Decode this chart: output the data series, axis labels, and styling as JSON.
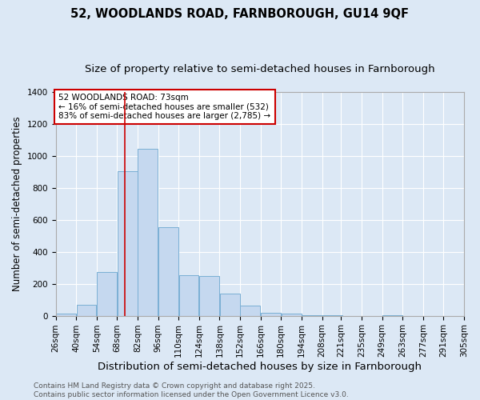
{
  "title1": "52, WOODLANDS ROAD, FARNBOROUGH, GU14 9QF",
  "title2": "Size of property relative to semi-detached houses in Farnborough",
  "xlabel": "Distribution of semi-detached houses by size in Farnborough",
  "ylabel": "Number of semi-detached properties",
  "bins": [
    "26sqm",
    "40sqm",
    "54sqm",
    "68sqm",
    "82sqm",
    "96sqm",
    "110sqm",
    "124sqm",
    "138sqm",
    "152sqm",
    "166sqm",
    "180sqm",
    "194sqm",
    "208sqm",
    "221sqm",
    "235sqm",
    "249sqm",
    "263sqm",
    "277sqm",
    "291sqm",
    "305sqm"
  ],
  "bin_edges": [
    26,
    40,
    54,
    68,
    82,
    96,
    110,
    124,
    138,
    152,
    166,
    180,
    194,
    208,
    221,
    235,
    249,
    263,
    277,
    291,
    305
  ],
  "values": [
    15,
    70,
    275,
    905,
    1045,
    555,
    255,
    250,
    140,
    65,
    20,
    15,
    5,
    5,
    0,
    0,
    5,
    0,
    0,
    0
  ],
  "bar_color": "#c5d8ef",
  "bar_edge_color": "#7aafd4",
  "property_line_x": 73,
  "annotation_text": "52 WOODLANDS ROAD: 73sqm\n← 16% of semi-detached houses are smaller (532)\n83% of semi-detached houses are larger (2,785) →",
  "annotation_box_color": "#ffffff",
  "annotation_box_edge": "#cc0000",
  "vline_color": "#cc0000",
  "ylim": [
    0,
    1400
  ],
  "yticks": [
    0,
    200,
    400,
    600,
    800,
    1000,
    1200,
    1400
  ],
  "background_color": "#dce8f5",
  "grid_color": "#ffffff",
  "footer": "Contains HM Land Registry data © Crown copyright and database right 2025.\nContains public sector information licensed under the Open Government Licence v3.0.",
  "title1_fontsize": 10.5,
  "title2_fontsize": 9.5,
  "xlabel_fontsize": 9.5,
  "ylabel_fontsize": 8.5,
  "tick_fontsize": 7.5,
  "annot_fontsize": 7.5,
  "footer_fontsize": 6.5
}
